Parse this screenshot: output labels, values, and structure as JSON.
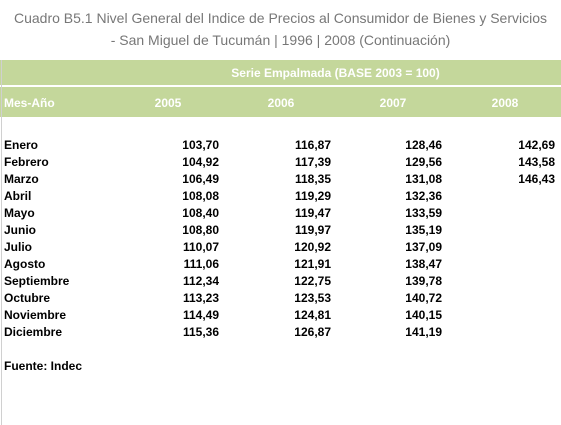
{
  "header": {
    "title_line1": "Cuadro B5.1 Nivel General del Indice de Precios al Consumidor de Bienes y Servicios",
    "title_line2": "- San Miguel de Tucumán | 1996 | 2008 (Continuación)"
  },
  "table": {
    "series_label": "Serie Empalmada (BASE 2003 = 100)",
    "row_header": "Mes-Año",
    "columns": [
      "2005",
      "2006",
      "2007",
      "2008"
    ],
    "rows": [
      {
        "month": "Enero",
        "values": [
          "103,70",
          "116,87",
          "128,46",
          "142,69"
        ]
      },
      {
        "month": "Febrero",
        "values": [
          "104,92",
          "117,39",
          "129,56",
          "143,58"
        ]
      },
      {
        "month": "Marzo",
        "values": [
          "106,49",
          "118,35",
          "131,08",
          "146,43"
        ]
      },
      {
        "month": "Abril",
        "values": [
          "108,08",
          "119,29",
          "132,36"
        ]
      },
      {
        "month": "Mayo",
        "values": [
          "108,40",
          "119,47",
          "133,59"
        ]
      },
      {
        "month": "Junio",
        "values": [
          "108,80",
          "119,97",
          "135,19"
        ]
      },
      {
        "month": "Julio",
        "values": [
          "110,07",
          "120,92",
          "137,09"
        ]
      },
      {
        "month": "Agosto",
        "values": [
          "111,06",
          "121,91",
          "138,47"
        ]
      },
      {
        "month": "Septiembre",
        "values": [
          "112,34",
          "122,75",
          "139,78"
        ]
      },
      {
        "month": "Octubre",
        "values": [
          "113,23",
          "123,53",
          "140,72"
        ]
      },
      {
        "month": "Noviembre",
        "values": [
          "114,49",
          "124,81",
          "140,15"
        ]
      },
      {
        "month": "Diciembre",
        "values": [
          "115,36",
          "126,87",
          "141,19"
        ]
      }
    ]
  },
  "footer": {
    "source": "Fuente: Indec"
  }
}
